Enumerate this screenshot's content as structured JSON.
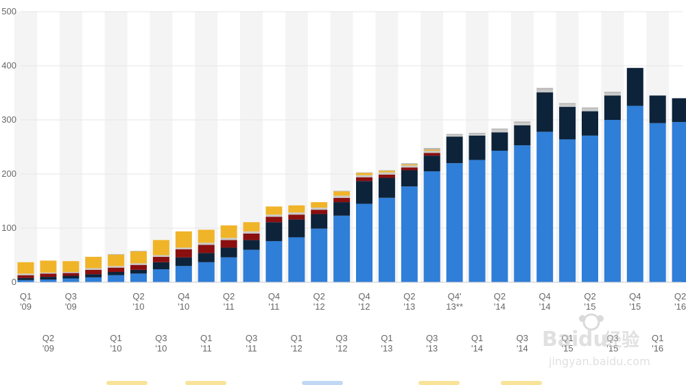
{
  "chart_data": {
    "type": "bar",
    "stacked": true,
    "ylim": [
      0,
      500
    ],
    "yticks": [
      "500",
      "400",
      "300",
      "200",
      "100",
      "0"
    ],
    "categories": [
      "Q1 '09",
      "Q2 '09",
      "Q3 '09",
      "Q4 '09",
      "Q1 '10",
      "Q2 '10",
      "Q3 '10",
      "Q4 '10",
      "Q1 '11",
      "Q2 '11",
      "Q3 '11",
      "Q4 '11",
      "Q1 '12",
      "Q2 '12",
      "Q3 '12",
      "Q4 '12",
      "Q1 '13",
      "Q2 '13",
      "Q3 '13",
      "Q4' 13**",
      "Q1 '14",
      "Q2 '14",
      "Q3 '14",
      "Q4 '14",
      "Q1 '15",
      "Q2 '15",
      "Q3 '15",
      "Q4 '15",
      "Q1 '16",
      "Q2 '16"
    ],
    "label_rows": [
      [
        [
          "Q1",
          "'09"
        ],
        null,
        [
          "Q3",
          "'09"
        ],
        null,
        null,
        [
          "Q2",
          "'10"
        ],
        null,
        [
          "Q4",
          "'10"
        ],
        null,
        [
          "Q2",
          "'11"
        ],
        null,
        [
          "Q4",
          "'11"
        ],
        null,
        [
          "Q2",
          "'12"
        ],
        null,
        [
          "Q4",
          "'12"
        ],
        null,
        [
          "Q2",
          "'13"
        ],
        null,
        [
          "Q4'",
          "13**"
        ],
        null,
        [
          "Q2",
          "'14"
        ],
        null,
        [
          "Q4",
          "'14"
        ],
        null,
        [
          "Q2",
          "'15"
        ],
        null,
        [
          "Q4",
          "'15"
        ],
        null,
        [
          "Q2",
          "'16"
        ]
      ],
      [
        null,
        [
          "Q2",
          "'09"
        ],
        null,
        null,
        [
          "Q1",
          "'10"
        ],
        null,
        [
          "Q3",
          "'10"
        ],
        null,
        [
          "Q1",
          "'11"
        ],
        null,
        [
          "Q3",
          "'11"
        ],
        null,
        [
          "Q1",
          "'12"
        ],
        null,
        [
          "Q3",
          "'12"
        ],
        null,
        [
          "Q1",
          "'13"
        ],
        null,
        [
          "Q3",
          "'13"
        ],
        null,
        [
          "Q1",
          "'14"
        ],
        null,
        [
          "Q3",
          "'14"
        ],
        null,
        [
          "Q1",
          "'15"
        ],
        null,
        [
          "Q3",
          "'15"
        ],
        null,
        [
          "Q1",
          "'16"
        ],
        null
      ]
    ],
    "series": [
      {
        "color": "#2f7ed8",
        "values": [
          4,
          5,
          7,
          9,
          13,
          16,
          24,
          30,
          37,
          46,
          60,
          76,
          83,
          99,
          123,
          145,
          156,
          177,
          205,
          220,
          226,
          243,
          253,
          278,
          264,
          271,
          300,
          326,
          294,
          296
        ]
      },
      {
        "color": "#0d233a",
        "values": [
          4,
          5,
          5,
          6,
          6,
          7,
          13,
          16,
          17,
          18,
          18,
          35,
          33,
          27,
          25,
          42,
          37,
          30,
          29,
          49,
          45,
          34,
          37,
          73,
          60,
          45,
          45,
          70,
          51,
          44
        ]
      },
      {
        "color": "#8b0f0f",
        "values": [
          5,
          6,
          5,
          8,
          8,
          9,
          10,
          15,
          15,
          14,
          12,
          10,
          9,
          8,
          8,
          7,
          6,
          5,
          5,
          0,
          0,
          0,
          0,
          0,
          0,
          0,
          0,
          0,
          0,
          0
        ]
      },
      {
        "color": "#c9c9c9",
        "values": [
          3,
          2,
          2,
          3,
          3,
          3,
          3,
          3,
          4,
          4,
          4,
          4,
          4,
          4,
          4,
          4,
          4,
          4,
          4,
          3,
          3,
          5,
          5,
          5,
          5,
          5,
          5,
          0,
          0,
          0
        ]
      },
      {
        "color": "#f0b429",
        "values": [
          21,
          22,
          20,
          21,
          21,
          22,
          28,
          30,
          24,
          23,
          17,
          15,
          13,
          10,
          8,
          4,
          3,
          2,
          2,
          0,
          0,
          0,
          0,
          0,
          0,
          0,
          0,
          0,
          0,
          0
        ]
      },
      {
        "color": "#b5b5b5",
        "values": [
          0,
          0,
          0,
          0,
          1,
          1,
          0,
          0,
          0,
          0,
          0,
          0,
          0,
          0,
          1,
          1,
          1,
          2,
          3,
          2,
          2,
          2,
          2,
          3,
          2,
          2,
          2,
          0,
          0,
          0
        ]
      }
    ],
    "legend_colors": [
      "#f5d76e",
      "#f5d76e",
      "#a6c8f0",
      "#f5d76e",
      "#f5d76e"
    ]
  }
}
